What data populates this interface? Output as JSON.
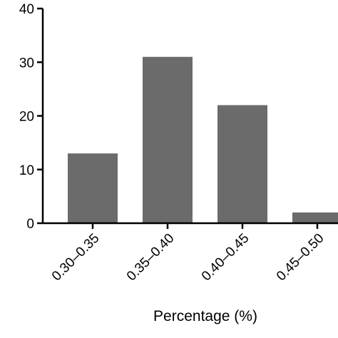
{
  "chart_data": {
    "type": "bar",
    "categories": [
      "0.30–0.35",
      "0.35–0.40",
      "0.40–0.45",
      "0.45–0.50"
    ],
    "values": [
      13,
      31,
      22,
      2
    ],
    "title": "",
    "xlabel": "Percentage (%)",
    "ylabel": "",
    "ylim": [
      0,
      40
    ],
    "yticks": [
      0,
      10,
      20,
      30,
      40
    ],
    "grid": false,
    "colors": {
      "bar": "#6b6b6b",
      "axis": "#000000"
    }
  }
}
